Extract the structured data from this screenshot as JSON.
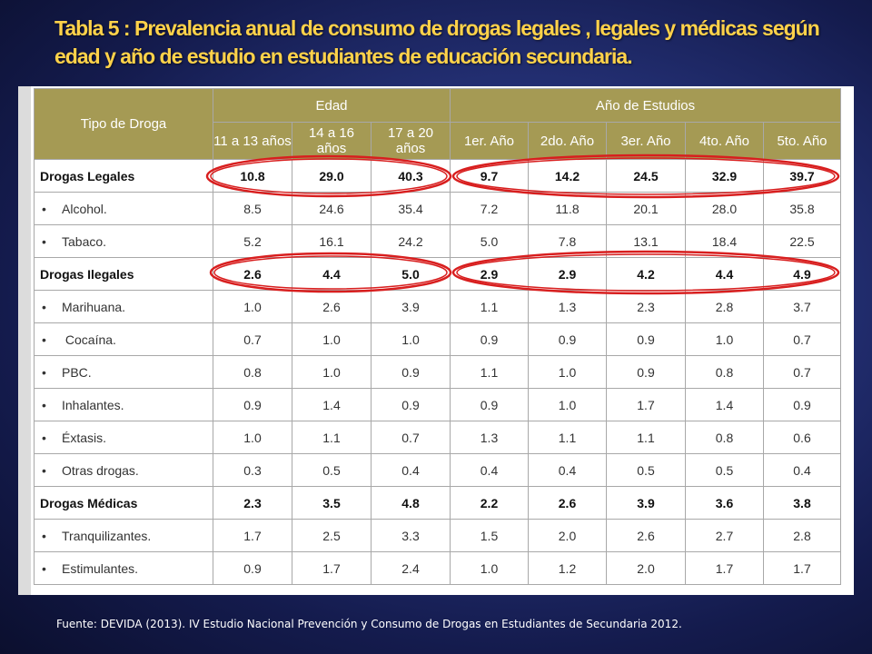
{
  "title": "Tabla 5 : Prevalencia anual  de consumo de drogas legales , legales  y médicas  según edad y año de estudio en estudiantes de  educación secundaria.",
  "table": {
    "header": {
      "tipo": "Tipo de Droga",
      "edad": "Edad",
      "anio": "Año de Estudios",
      "cols": [
        "11 a 13 años",
        "14 a 16 años",
        "17 a 20 años",
        "1er. Año",
        "2do. Año",
        "3er. Año",
        "4to. Año",
        "5to. Año"
      ]
    },
    "rows": [
      {
        "name": "Drogas Legales",
        "group": true,
        "values": [
          "10.8",
          "29.0",
          "40.3",
          "9.7",
          "14.2",
          "24.5",
          "32.9",
          "39.7"
        ]
      },
      {
        "name": "Alcohol.",
        "bullet": "•",
        "values": [
          "8.5",
          "24.6",
          "35.4",
          "7.2",
          "11.8",
          "20.1",
          "28.0",
          "35.8"
        ]
      },
      {
        "name": "Tabaco.",
        "bullet": "•",
        "values": [
          "5.2",
          "16.1",
          "24.2",
          "5.0",
          "7.8",
          "13.1",
          "18.4",
          "22.5"
        ]
      },
      {
        "name": "Drogas Ilegales",
        "group": true,
        "values": [
          "2.6",
          "4.4",
          "5.0",
          "2.9",
          "2.9",
          "4.2",
          "4.4",
          "4.9"
        ]
      },
      {
        "name": "Marihuana.",
        "bullet": "•",
        "values": [
          "1.0",
          "2.6",
          "3.9",
          "1.1",
          "1.3",
          "2.3",
          "2.8",
          "3.7"
        ]
      },
      {
        "name": " Cocaína.",
        "bullet": "•",
        "values": [
          "0.7",
          "1.0",
          "1.0",
          "0.9",
          "0.9",
          "0.9",
          "1.0",
          "0.7"
        ]
      },
      {
        "name": "PBC.",
        "bullet": "•",
        "values": [
          "0.8",
          "1.0",
          "0.9",
          "1.1",
          "1.0",
          "0.9",
          "0.8",
          "0.7"
        ]
      },
      {
        "name": "Inhalantes.",
        "bullet": "•",
        "values": [
          "0.9",
          "1.4",
          "0.9",
          "0.9",
          "1.0",
          "1.7",
          "1.4",
          "0.9"
        ]
      },
      {
        "name": "Éxtasis.",
        "bullet": "•",
        "values": [
          "1.0",
          "1.1",
          "0.7",
          "1.3",
          "1.1",
          "1.1",
          "0.8",
          "0.6"
        ]
      },
      {
        "name": "Otras drogas.",
        "bullet": "•",
        "values": [
          "0.3",
          "0.5",
          "0.4",
          "0.4",
          "0.4",
          "0.5",
          "0.5",
          "0.4"
        ]
      },
      {
        "name": "Drogas Médicas",
        "group": true,
        "values": [
          "2.3",
          "3.5",
          "4.8",
          "2.2",
          "2.6",
          "3.9",
          "3.6",
          "3.8"
        ]
      },
      {
        "name": "Tranquilizantes.",
        "bullet": "•",
        "values": [
          "1.7",
          "2.5",
          "3.3",
          "1.5",
          "2.0",
          "2.6",
          "2.7",
          "2.8"
        ]
      },
      {
        "name": "Estimulantes.",
        "bullet": "•",
        "values": [
          "0.9",
          "1.7",
          "2.4",
          "1.0",
          "1.2",
          "2.0",
          "1.7",
          "1.7"
        ]
      }
    ]
  },
  "highlight_color": "#d81e1e",
  "source": "Fuente: DEVIDA (2013). IV Estudio Nacional Prevención y Consumo de Drogas en Estudiantes de Secundaria 2012."
}
